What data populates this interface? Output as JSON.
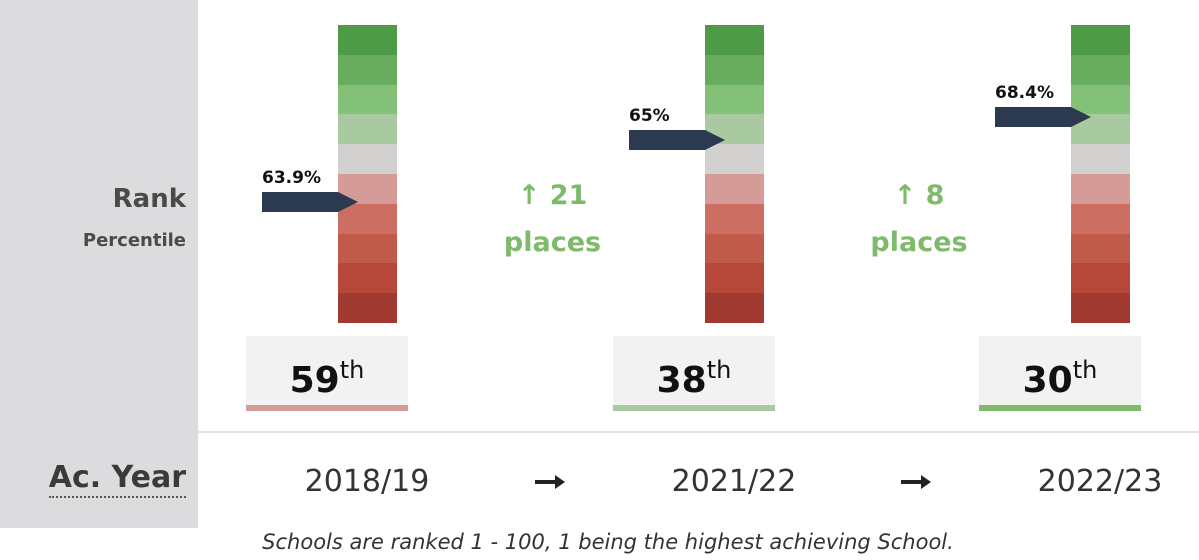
{
  "row_labels": {
    "rank": "Rank",
    "percentile": "Percentile",
    "year": "Ac. Year"
  },
  "columns": [
    {
      "percentile": "63.9%",
      "rank": "59",
      "suffix": "th",
      "year": "2018/19"
    },
    {
      "percentile": "65%",
      "rank": "38",
      "suffix": "th",
      "year": "2021/22"
    },
    {
      "percentile": "68.4%",
      "rank": "30",
      "suffix": "th",
      "year": "2022/23"
    }
  ],
  "changes": [
    {
      "amount": "21",
      "unit": "places"
    },
    {
      "amount": "8",
      "unit": "places"
    }
  ],
  "footnote": "Schools are ranked 1 - 100, 1 being the highest achieving School."
}
